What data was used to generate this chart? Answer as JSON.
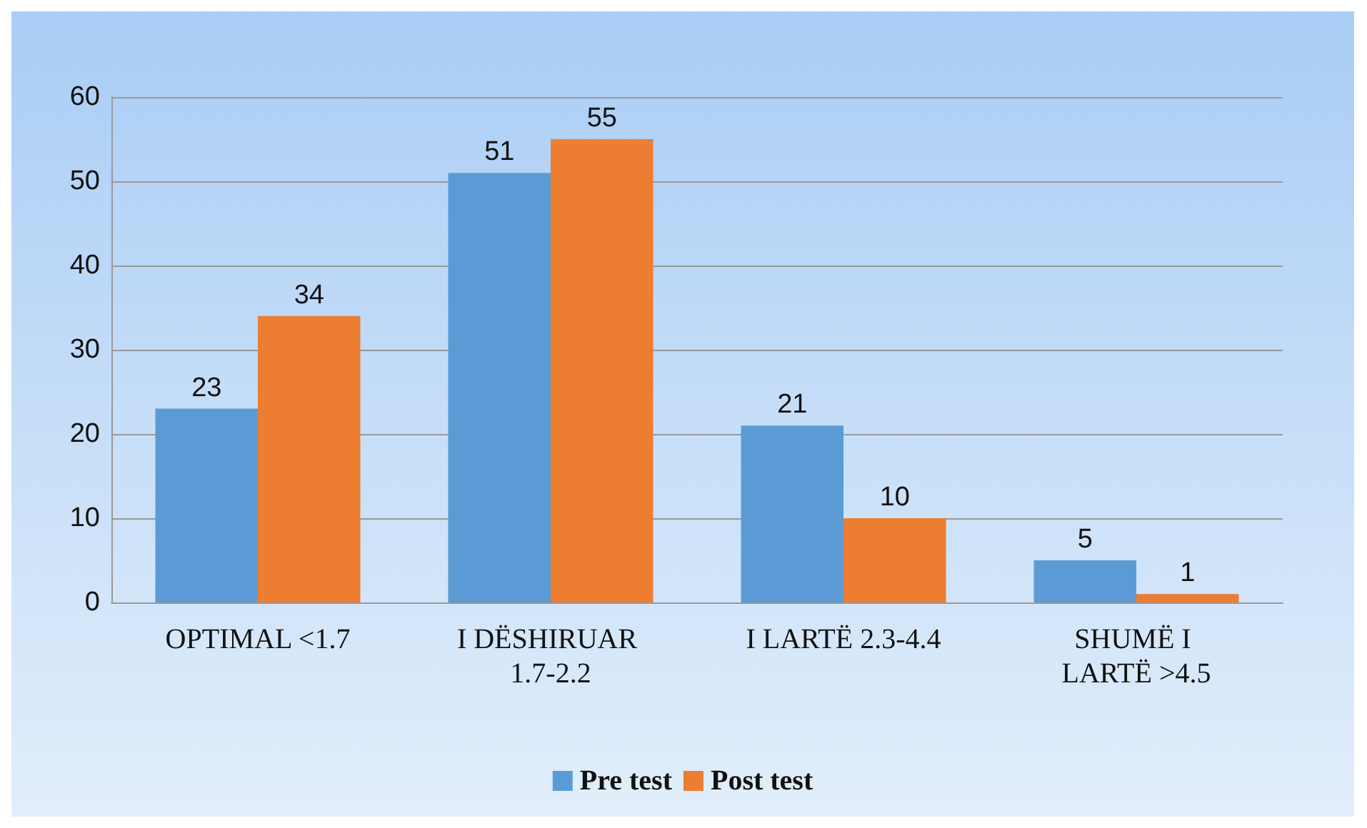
{
  "chart_data": {
    "type": "bar",
    "categories": [
      "OPTIMAL <1.7",
      "I DËSHIRUAR 1.7-2.2",
      "I LARTË 2.3-4.4",
      "SHUMË I LARTË >4.5"
    ],
    "series": [
      {
        "name": "Pre test",
        "color": "#5b9bd5",
        "values": [
          23,
          51,
          21,
          5
        ]
      },
      {
        "name": "Post test",
        "color": "#ed7d31",
        "values": [
          34,
          55,
          10,
          1
        ]
      }
    ],
    "ylim": [
      0,
      60
    ],
    "yticks": [
      0,
      10,
      20,
      30,
      40,
      50,
      60
    ],
    "grid": "y",
    "legend": "bottom",
    "data_labels": true
  }
}
